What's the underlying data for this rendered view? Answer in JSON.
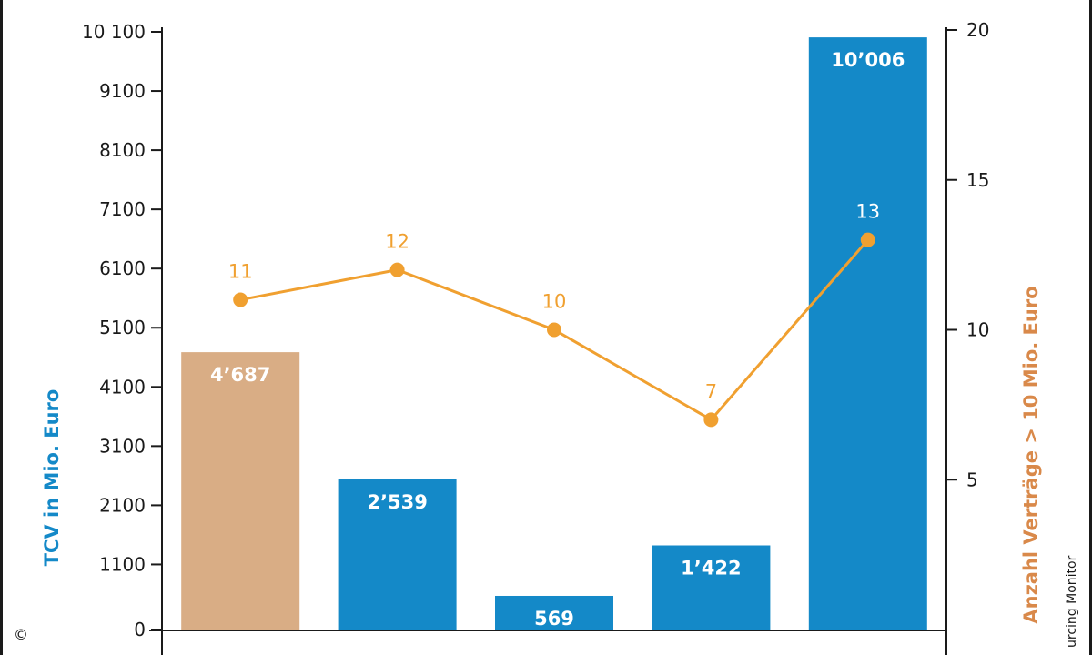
{
  "chart_data": {
    "type": "bar",
    "categories": [
      "",
      "",
      "",
      "",
      ""
    ],
    "series": [
      {
        "type": "bar",
        "values": [
          4687,
          2539,
          569,
          1422,
          10006
        ],
        "labels": [
          "4’687",
          "2’539",
          "569",
          "1’422",
          "10’006"
        ],
        "colors": [
          "#d9ad85",
          "#1489c8",
          "#1489c8",
          "#1489c8",
          "#1489c8"
        ]
      },
      {
        "type": "line",
        "axis": "right",
        "values": [
          11,
          12,
          10,
          7,
          13
        ],
        "labels": [
          "11",
          "12",
          "10",
          "7",
          "13"
        ],
        "color": "#f0a030"
      }
    ],
    "ylabel": "TCV in Mio. Euro",
    "ylabel_color": "#1489c8",
    "ylim": [
      0,
      10100
    ],
    "yticks": [
      "0",
      "1100",
      "2100",
      "3100",
      "4100",
      "5100",
      "6100",
      "7100",
      "8100",
      "9100",
      "10 100"
    ],
    "ytick_values": [
      0,
      1100,
      2100,
      3100,
      4100,
      5100,
      6100,
      7100,
      8100,
      9100,
      10100
    ],
    "y2label": "Anzahl Verträge > 10 Mio. Euro",
    "y2label_color": "#d9894a",
    "y2lim": [
      0,
      20
    ],
    "y2ticks": [
      "5",
      "10",
      "15",
      "20"
    ],
    "y2tick_values": [
      5,
      10,
      15,
      20
    ],
    "line_label_colors": [
      "#f0a030",
      "#f0a030",
      "#f0a030",
      "#f0a030",
      "#ffffff"
    ]
  },
  "credit": "urcing Monitor",
  "copyright_symbol": "©"
}
